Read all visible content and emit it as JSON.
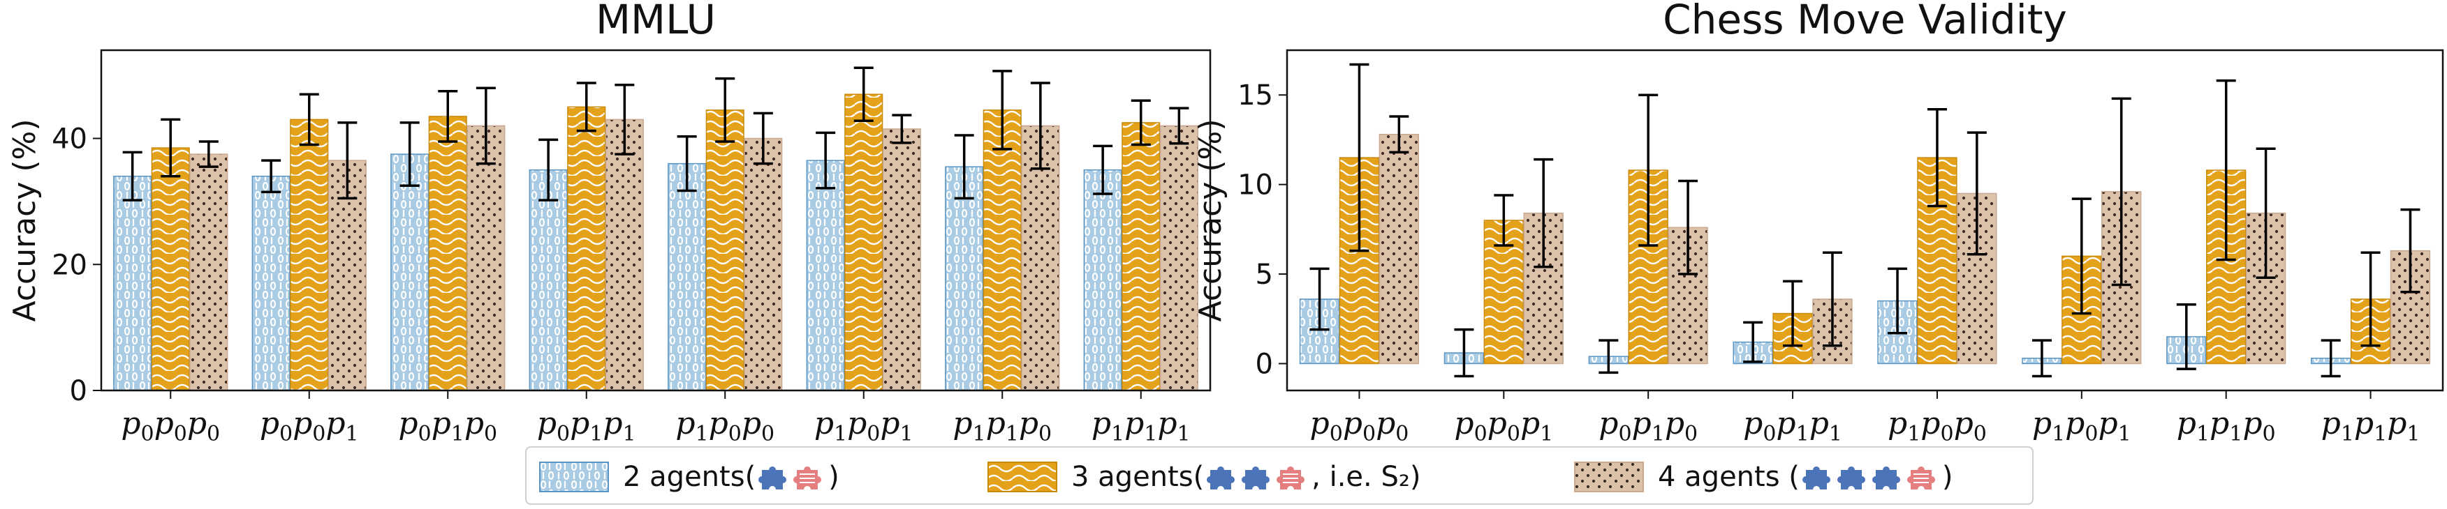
{
  "colors": {
    "agents2": "#a9cbe3",
    "agents2_edge": "#5b95c4",
    "agents3": "#e3a21a",
    "agents4": "#dcc1ab",
    "error": "#000000",
    "puzzle_blue": "#4c74b8",
    "puzzle_red": "#e57e7e"
  },
  "legend": {
    "items": [
      {
        "label": "2 agents",
        "suffix": ")",
        "icons": [
          "puzzle-blue-icon",
          "puzzle-red-icon"
        ]
      },
      {
        "label": "3 agents",
        "suffix": ", i.e. S₂)",
        "icons": [
          "puzzle-blue-icon",
          "puzzle-blue-icon",
          "puzzle-red-icon"
        ]
      },
      {
        "label": "4 agents ",
        "suffix": ")",
        "icons": [
          "puzzle-blue-icon",
          "puzzle-blue-icon",
          "puzzle-blue-icon",
          "puzzle-red-icon"
        ]
      }
    ]
  },
  "chart_data": [
    {
      "type": "bar",
      "title": "MMLU",
      "ylabel": "Accuracy (%)",
      "ylim": [
        0,
        54
      ],
      "yticks": [
        0,
        20,
        40
      ],
      "categories": [
        [
          "p",
          "0",
          "p",
          "0",
          "p",
          "0"
        ],
        [
          "p",
          "0",
          "p",
          "0",
          "p",
          "1"
        ],
        [
          "p",
          "0",
          "p",
          "1",
          "p",
          "0"
        ],
        [
          "p",
          "0",
          "p",
          "1",
          "p",
          "1"
        ],
        [
          "p",
          "1",
          "p",
          "0",
          "p",
          "0"
        ],
        [
          "p",
          "1",
          "p",
          "0",
          "p",
          "1"
        ],
        [
          "p",
          "1",
          "p",
          "1",
          "p",
          "0"
        ],
        [
          "p",
          "1",
          "p",
          "1",
          "p",
          "1"
        ]
      ],
      "series": [
        {
          "name": "2 agents",
          "values": [
            34.0,
            34.0,
            37.5,
            35.0,
            36.0,
            36.5,
            35.5,
            35.0
          ],
          "err": [
            3.8,
            2.5,
            5.0,
            4.8,
            4.3,
            4.4,
            5.0,
            3.8
          ]
        },
        {
          "name": "3 agents",
          "values": [
            38.5,
            43.0,
            43.5,
            45.0,
            44.5,
            47.0,
            44.5,
            42.5
          ],
          "err": [
            4.5,
            4.0,
            4.0,
            3.8,
            5.0,
            4.2,
            6.2,
            3.5
          ]
        },
        {
          "name": "4 agents",
          "values": [
            37.5,
            36.5,
            42.0,
            43.0,
            40.0,
            41.5,
            42.0,
            42.0
          ],
          "err": [
            2.0,
            6.0,
            6.0,
            5.5,
            4.0,
            2.2,
            6.8,
            2.8
          ]
        }
      ]
    },
    {
      "type": "bar",
      "title": "Chess Move Validity",
      "ylabel": "Accuracy (%)",
      "ylim": [
        -1.5,
        17.5
      ],
      "yticks": [
        0,
        5,
        10,
        15
      ],
      "categories": [
        [
          "p",
          "0",
          "p",
          "0",
          "p",
          "0"
        ],
        [
          "p",
          "0",
          "p",
          "0",
          "p",
          "1"
        ],
        [
          "p",
          "0",
          "p",
          "1",
          "p",
          "0"
        ],
        [
          "p",
          "0",
          "p",
          "1",
          "p",
          "1"
        ],
        [
          "p",
          "1",
          "p",
          "0",
          "p",
          "0"
        ],
        [
          "p",
          "1",
          "p",
          "0",
          "p",
          "1"
        ],
        [
          "p",
          "1",
          "p",
          "1",
          "p",
          "0"
        ],
        [
          "p",
          "1",
          "p",
          "1",
          "p",
          "1"
        ]
      ],
      "series": [
        {
          "name": "2 agents",
          "values": [
            3.6,
            0.6,
            0.4,
            1.2,
            3.5,
            0.3,
            1.5,
            0.3
          ],
          "err": [
            1.7,
            1.3,
            0.9,
            1.1,
            1.8,
            1.0,
            1.8,
            1.0
          ]
        },
        {
          "name": "3 agents",
          "values": [
            11.5,
            8.0,
            10.8,
            2.8,
            11.5,
            6.0,
            10.8,
            3.6
          ],
          "err": [
            5.2,
            1.4,
            4.2,
            1.8,
            2.7,
            3.2,
            5.0,
            2.6
          ]
        },
        {
          "name": "4 agents",
          "values": [
            12.8,
            8.4,
            7.6,
            3.6,
            9.5,
            9.6,
            8.4,
            6.3
          ],
          "err": [
            1.0,
            3.0,
            2.6,
            2.6,
            3.4,
            5.2,
            3.6,
            2.3
          ]
        }
      ]
    }
  ]
}
